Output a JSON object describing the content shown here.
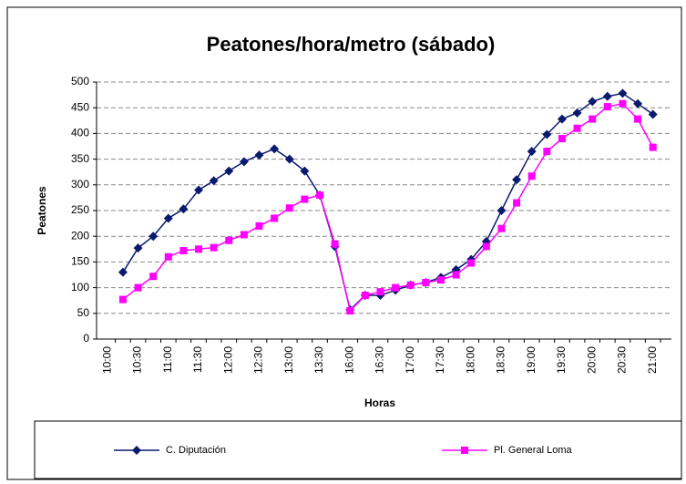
{
  "chart_data": {
    "type": "line",
    "title": "Peatones/hora/metro (sábado)",
    "x_label": "Horas",
    "y_label": "Peatones",
    "categories": [
      "10:00",
      null,
      "10:30",
      null,
      "11:00",
      null,
      "11:30",
      null,
      "12:00",
      null,
      "12:30",
      null,
      "13:00",
      null,
      "13:30",
      null,
      "16:00",
      null,
      "16:30",
      null,
      "17:00",
      null,
      "17:30",
      null,
      "18:00",
      null,
      "18:30",
      null,
      "19:00",
      null,
      "19:30",
      null,
      "20:00",
      null,
      "20:30",
      null,
      "21:00"
    ],
    "series": [
      {
        "name": "C. Diputación",
        "color": "#0a1a6e",
        "marker": "diamond",
        "values": [
          null,
          130,
          177,
          200,
          235,
          253,
          290,
          308,
          327,
          345,
          358,
          370,
          350,
          327,
          280,
          180,
          57,
          85,
          85,
          95,
          105,
          110,
          120,
          135,
          155,
          190,
          250,
          310,
          365,
          398,
          428,
          440,
          462,
          472,
          478,
          458,
          437
        ]
      },
      {
        "name": "Pl. General Loma",
        "color": "#ff00ff",
        "marker": "square",
        "values": [
          null,
          77,
          100,
          122,
          160,
          172,
          175,
          178,
          192,
          203,
          220,
          235,
          255,
          272,
          280,
          185,
          55,
          85,
          92,
          100,
          105,
          110,
          115,
          125,
          148,
          180,
          215,
          265,
          317,
          365,
          390,
          410,
          428,
          452,
          458,
          428,
          373
        ]
      }
    ],
    "ylim": [
      0,
      500
    ],
    "yticks": [
      0,
      50,
      100,
      150,
      200,
      250,
      300,
      350,
      400,
      450,
      500
    ],
    "grid": true,
    "legend": "bottom"
  }
}
